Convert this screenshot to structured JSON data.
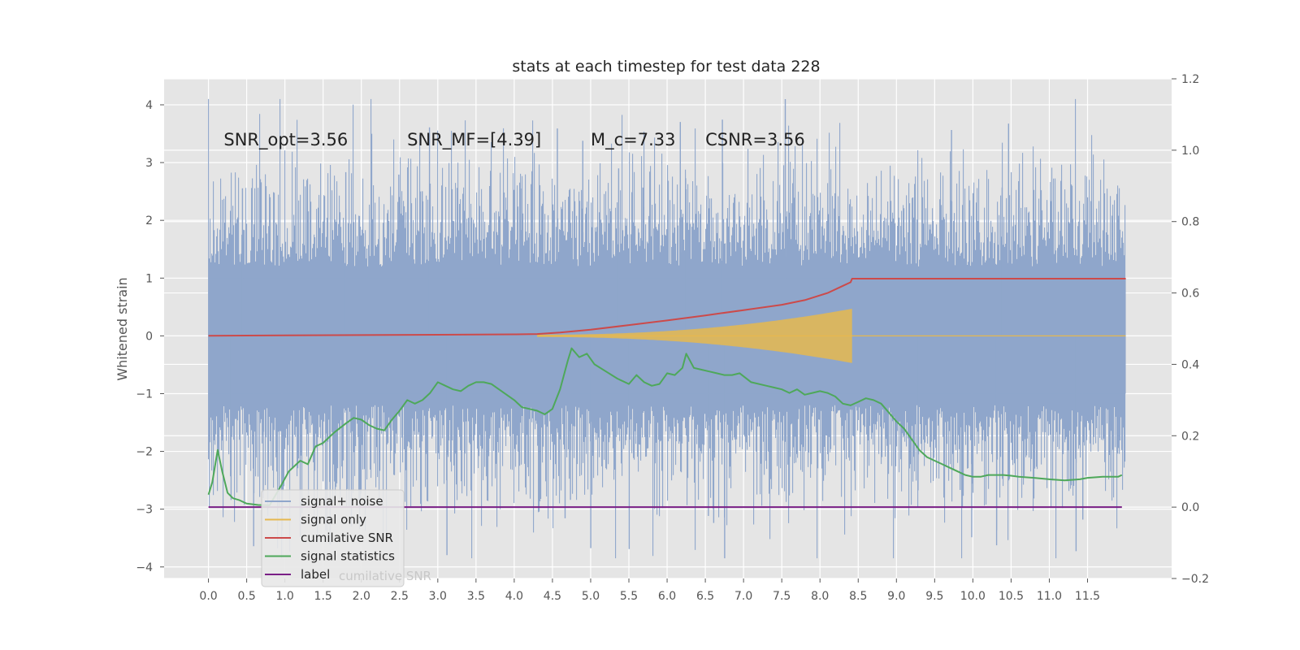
{
  "chart_data": {
    "type": "line",
    "title": "stats at each timestep for test data 228",
    "ylabel": "Whitened strain",
    "xlabel": "",
    "xlim": [
      -0.58,
      12.6
    ],
    "ylim": [
      -4.2,
      4.45
    ],
    "y2lim": [
      -0.2,
      1.2
    ],
    "x_ticks": [
      0.0,
      0.5,
      1.0,
      1.5,
      2.0,
      2.5,
      3.0,
      3.5,
      4.0,
      4.5,
      5.0,
      5.5,
      6.0,
      6.5,
      7.0,
      7.5,
      8.0,
      8.5,
      9.0,
      9.5,
      10.0,
      10.5,
      11.0,
      11.5
    ],
    "x_tick_labels": [
      "0.0",
      "0.5",
      "1.0",
      "1.5",
      "2.0",
      "2.5",
      "3.0",
      "3.5",
      "4.0",
      "4.5",
      "5.0",
      "5.5",
      "6.0",
      "6.5",
      "7.0",
      "7.5",
      "8.0",
      "8.5",
      "9.0",
      "9.5",
      "10.0",
      "10.5",
      "11.0",
      "11.5"
    ],
    "y_ticks": [
      -4,
      -3,
      -2,
      -1,
      0,
      1,
      2,
      3,
      4
    ],
    "y_tick_labels": [
      "−4",
      "−3",
      "−2",
      "−1",
      "0",
      "1",
      "2",
      "3",
      "4"
    ],
    "y2_ticks": [
      -0.2,
      0.0,
      0.2,
      0.4,
      0.6,
      0.8,
      1.0,
      1.2
    ],
    "y2_tick_labels": [
      "−0.2",
      "0.0",
      "0.2",
      "0.4",
      "0.6",
      "0.8",
      "1.0",
      "1.2"
    ],
    "grid": true,
    "legend_position": "lower-left",
    "annotations": [
      {
        "text": "SNR_opt=3.56",
        "x": 0.2,
        "y": 3.3
      },
      {
        "text": "SNR_MF=[4.39]",
        "x": 2.6,
        "y": 3.3
      },
      {
        "text": "M_c=7.33",
        "x": 5.0,
        "y": 3.3
      },
      {
        "text": "CSNR=3.56",
        "x": 6.5,
        "y": 3.3
      }
    ],
    "noise": {
      "x_start": 0.0,
      "x_end": 12.0,
      "amplitude": 1.0,
      "spike_max": 4.1,
      "spike_min": -3.85
    },
    "signal_only": {
      "x_start": 4.3,
      "x_end": 8.42,
      "peak_amplitude": 0.45
    },
    "series": [
      {
        "name": "signal+ noise",
        "color": "#8fa6cb",
        "axis": "left",
        "style": "band"
      },
      {
        "name": "signal only",
        "color": "#e6b84f",
        "axis": "left",
        "style": "chirp"
      },
      {
        "name": "cumilative SNR",
        "color": "#cc4a4a",
        "axis": "right",
        "x": [
          0.0,
          1.0,
          2.0,
          3.0,
          4.0,
          4.3,
          4.6,
          5.0,
          5.5,
          6.0,
          6.5,
          7.0,
          7.5,
          7.8,
          8.1,
          8.3,
          8.4,
          8.42,
          9.0,
          10.0,
          11.0,
          12.0
        ],
        "values": [
          0.48,
          0.481,
          0.482,
          0.483,
          0.484,
          0.485,
          0.489,
          0.497,
          0.51,
          0.523,
          0.537,
          0.552,
          0.567,
          0.58,
          0.6,
          0.62,
          0.63,
          0.64,
          0.64,
          0.64,
          0.64,
          0.64
        ]
      },
      {
        "name": "signal statistics",
        "color": "#4ea85a",
        "axis": "right",
        "x": [
          0.0,
          0.05,
          0.12,
          0.18,
          0.25,
          0.32,
          0.4,
          0.5,
          0.65,
          0.8,
          0.95,
          1.05,
          1.2,
          1.3,
          1.4,
          1.5,
          1.65,
          1.8,
          1.9,
          2.0,
          2.1,
          2.2,
          2.3,
          2.4,
          2.5,
          2.6,
          2.7,
          2.8,
          2.9,
          3.0,
          3.1,
          3.2,
          3.3,
          3.4,
          3.5,
          3.6,
          3.7,
          3.8,
          3.9,
          4.0,
          4.1,
          4.2,
          4.3,
          4.4,
          4.5,
          4.6,
          4.7,
          4.75,
          4.85,
          4.95,
          5.05,
          5.2,
          5.35,
          5.5,
          5.6,
          5.7,
          5.8,
          5.9,
          6.0,
          6.1,
          6.2,
          6.25,
          6.35,
          6.45,
          6.55,
          6.65,
          6.75,
          6.85,
          6.95,
          7.1,
          7.3,
          7.4,
          7.5,
          7.6,
          7.7,
          7.8,
          7.9,
          8.0,
          8.1,
          8.2,
          8.3,
          8.4,
          8.5,
          8.6,
          8.7,
          8.8,
          8.9,
          9.0,
          9.1,
          9.2,
          9.3,
          9.4,
          9.5,
          9.6,
          9.7,
          9.8,
          9.9,
          10.0,
          10.1,
          10.2,
          10.3,
          10.4,
          10.5,
          10.6,
          10.8,
          11.0,
          11.2,
          11.4,
          11.5,
          11.7,
          11.9,
          11.95
        ],
        "values": [
          0.035,
          0.07,
          0.16,
          0.1,
          0.04,
          0.025,
          0.02,
          0.01,
          0.006,
          0.005,
          0.06,
          0.1,
          0.13,
          0.12,
          0.17,
          0.18,
          0.21,
          0.235,
          0.25,
          0.245,
          0.23,
          0.22,
          0.215,
          0.245,
          0.27,
          0.3,
          0.29,
          0.3,
          0.32,
          0.35,
          0.34,
          0.33,
          0.325,
          0.34,
          0.35,
          0.35,
          0.345,
          0.33,
          0.315,
          0.3,
          0.28,
          0.275,
          0.27,
          0.26,
          0.275,
          0.33,
          0.41,
          0.445,
          0.42,
          0.43,
          0.4,
          0.38,
          0.36,
          0.345,
          0.37,
          0.35,
          0.34,
          0.345,
          0.375,
          0.37,
          0.39,
          0.43,
          0.39,
          0.385,
          0.38,
          0.375,
          0.37,
          0.37,
          0.375,
          0.35,
          0.34,
          0.335,
          0.33,
          0.32,
          0.33,
          0.315,
          0.32,
          0.325,
          0.32,
          0.31,
          0.29,
          0.285,
          0.295,
          0.305,
          0.3,
          0.29,
          0.265,
          0.24,
          0.22,
          0.19,
          0.16,
          0.14,
          0.13,
          0.12,
          0.11,
          0.1,
          0.09,
          0.085,
          0.085,
          0.09,
          0.09,
          0.09,
          0.088,
          0.085,
          0.082,
          0.078,
          0.075,
          0.078,
          0.082,
          0.085,
          0.085,
          0.09
        ]
      },
      {
        "name": "label",
        "color": "#7a1f86",
        "axis": "right",
        "x": [
          0.0,
          11.95
        ],
        "values": [
          0.0,
          0.0
        ]
      }
    ],
    "hidden_legend_text": "cumilative SNR"
  }
}
